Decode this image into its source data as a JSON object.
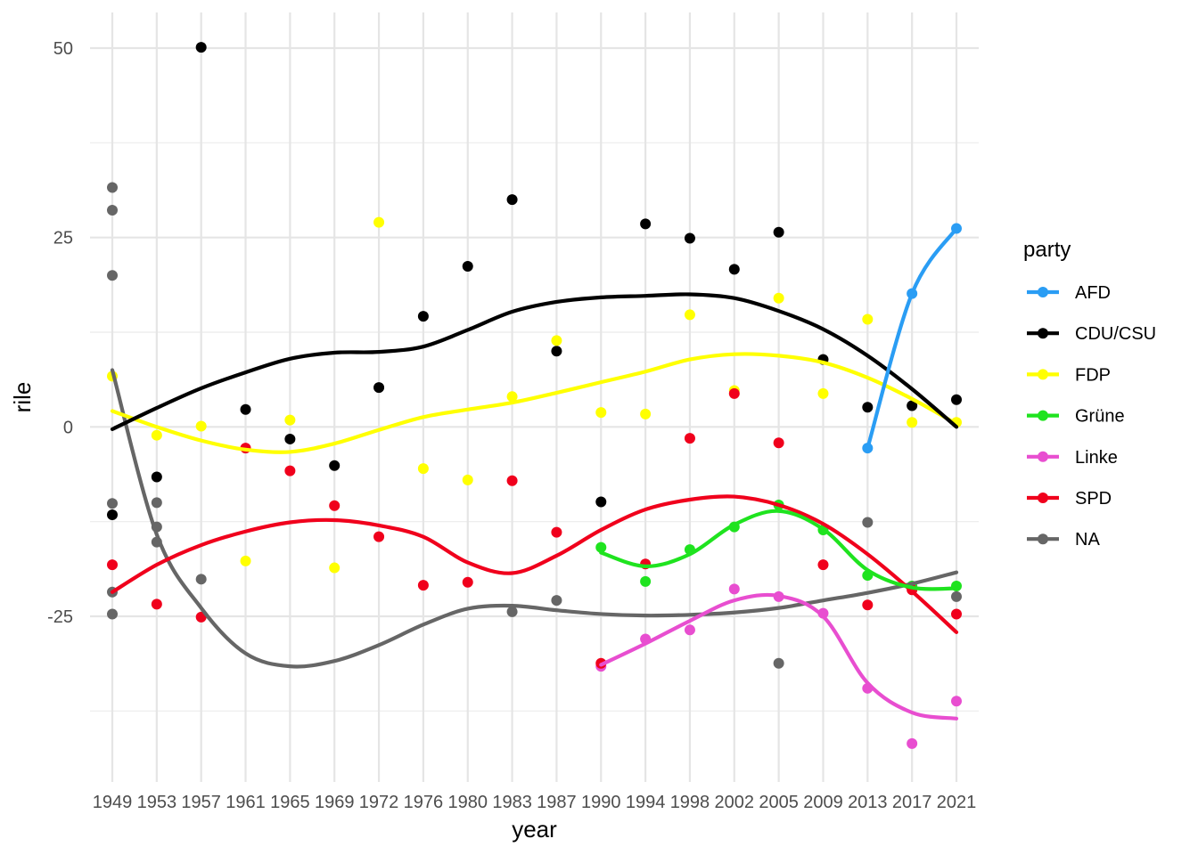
{
  "chart_data": {
    "type": "scatter",
    "xlabel": "year",
    "ylabel": "rile",
    "categories": [
      "1949",
      "1953",
      "1957",
      "1961",
      "1965",
      "1969",
      "1972",
      "1976",
      "1980",
      "1983",
      "1987",
      "1990",
      "1994",
      "1998",
      "2002",
      "2005",
      "2009",
      "2013",
      "2017",
      "2021"
    ],
    "y_ticks": [
      -25,
      0,
      25,
      50
    ],
    "ylim": [
      -46,
      55
    ],
    "grid": true,
    "legend": {
      "title": "party",
      "position": "right"
    },
    "series": [
      {
        "name": "AFD",
        "color": "#2a9df4",
        "points": [
          [
            "2013",
            -2.8
          ],
          [
            "2017",
            17.6
          ],
          [
            "2021",
            26.2
          ]
        ],
        "smooth": [
          [
            "2013",
            -2.8
          ],
          [
            "2017",
            17.6
          ],
          [
            "2021",
            26.2
          ]
        ]
      },
      {
        "name": "CDU/CSU",
        "color": "#000000",
        "points": [
          [
            "1949",
            -11.6
          ],
          [
            "1953",
            -6.6
          ],
          [
            "1957",
            50.1
          ],
          [
            "1961",
            2.3
          ],
          [
            "1965",
            -1.6
          ],
          [
            "1969",
            -5.1
          ],
          [
            "1972",
            5.2
          ],
          [
            "1976",
            14.6
          ],
          [
            "1980",
            21.2
          ],
          [
            "1983",
            30.0
          ],
          [
            "1987",
            10.0
          ],
          [
            "1990",
            -9.9
          ],
          [
            "1994",
            26.8
          ],
          [
            "1998",
            24.9
          ],
          [
            "2002",
            20.8
          ],
          [
            "2005",
            25.7
          ],
          [
            "2009",
            8.9
          ],
          [
            "2013",
            2.6
          ],
          [
            "2017",
            2.8
          ],
          [
            "2021",
            3.6
          ]
        ],
        "smooth": [
          [
            "1949",
            -0.3
          ],
          [
            "1953",
            2.5
          ],
          [
            "1957",
            5.1
          ],
          [
            "1961",
            7.2
          ],
          [
            "1965",
            9.0
          ],
          [
            "1969",
            9.8
          ],
          [
            "1972",
            9.9
          ],
          [
            "1976",
            10.6
          ],
          [
            "1980",
            12.8
          ],
          [
            "1983",
            15.2
          ],
          [
            "1987",
            16.5
          ],
          [
            "1990",
            17.1
          ],
          [
            "1994",
            17.3
          ],
          [
            "1998",
            17.5
          ],
          [
            "2002",
            17.0
          ],
          [
            "2005",
            15.3
          ],
          [
            "2009",
            12.9
          ],
          [
            "2013",
            9.4
          ],
          [
            "2017",
            5.0
          ],
          [
            "2021",
            0.0
          ]
        ]
      },
      {
        "name": "FDP",
        "color": "#ffff00",
        "points": [
          [
            "1949",
            6.7
          ],
          [
            "1953",
            -1.1
          ],
          [
            "1957",
            0.1
          ],
          [
            "1961",
            -17.7
          ],
          [
            "1965",
            0.9
          ],
          [
            "1969",
            -18.6
          ],
          [
            "1972",
            27.0
          ],
          [
            "1976",
            -5.5
          ],
          [
            "1980",
            -7.0
          ],
          [
            "1983",
            4.0
          ],
          [
            "1987",
            11.4
          ],
          [
            "1990",
            1.9
          ],
          [
            "1994",
            1.7
          ],
          [
            "1998",
            14.8
          ],
          [
            "2002",
            4.8
          ],
          [
            "2005",
            17.0
          ],
          [
            "2009",
            4.4
          ],
          [
            "2013",
            14.2
          ],
          [
            "2017",
            0.6
          ],
          [
            "2021",
            0.6
          ]
        ],
        "smooth": [
          [
            "1949",
            2.1
          ],
          [
            "1953",
            0.0
          ],
          [
            "1957",
            -1.8
          ],
          [
            "1961",
            -3.0
          ],
          [
            "1965",
            -3.3
          ],
          [
            "1969",
            -2.2
          ],
          [
            "1972",
            -0.4
          ],
          [
            "1976",
            1.3
          ],
          [
            "1980",
            2.3
          ],
          [
            "1983",
            3.2
          ],
          [
            "1987",
            4.5
          ],
          [
            "1990",
            5.9
          ],
          [
            "1994",
            7.3
          ],
          [
            "1998",
            8.9
          ],
          [
            "2002",
            9.6
          ],
          [
            "2005",
            9.4
          ],
          [
            "2009",
            8.5
          ],
          [
            "2013",
            6.5
          ],
          [
            "2017",
            3.7
          ],
          [
            "2021",
            0.4
          ]
        ]
      },
      {
        "name": "Grüne",
        "color": "#1fe31f",
        "points": [
          [
            "1990",
            -15.9
          ],
          [
            "1994",
            -20.4
          ],
          [
            "1998",
            -16.2
          ],
          [
            "2002",
            -13.2
          ],
          [
            "2005",
            -10.3
          ],
          [
            "2009",
            -13.6
          ],
          [
            "2013",
            -19.6
          ],
          [
            "2017",
            -21.0
          ],
          [
            "2021",
            -21.0
          ]
        ],
        "smooth": [
          [
            "1990",
            -16.6
          ],
          [
            "1994",
            -18.4
          ],
          [
            "1998",
            -16.8
          ],
          [
            "2002",
            -12.9
          ],
          [
            "2005",
            -11.1
          ],
          [
            "2009",
            -13.5
          ],
          [
            "2013",
            -18.9
          ],
          [
            "2017",
            -21.2
          ],
          [
            "2021",
            -21.3
          ]
        ]
      },
      {
        "name": "Linke",
        "color": "#e84ed0",
        "points": [
          [
            "1990",
            -31.6
          ],
          [
            "1994",
            -28.0
          ],
          [
            "1998",
            -26.8
          ],
          [
            "2002",
            -21.4
          ],
          [
            "2005",
            -22.4
          ],
          [
            "2009",
            -24.6
          ],
          [
            "2013",
            -34.5
          ],
          [
            "2017",
            -41.8
          ],
          [
            "2021",
            -36.2
          ]
        ],
        "smooth": [
          [
            "1990",
            -31.4
          ],
          [
            "1994",
            -28.6
          ],
          [
            "1998",
            -25.6
          ],
          [
            "2002",
            -22.9
          ],
          [
            "2005",
            -22.3
          ],
          [
            "2009",
            -25.0
          ],
          [
            "2013",
            -33.8
          ],
          [
            "2017",
            -37.7
          ],
          [
            "2021",
            -38.5
          ]
        ]
      },
      {
        "name": "SPD",
        "color": "#f0001c",
        "points": [
          [
            "1949",
            -18.2
          ],
          [
            "1953",
            -23.4
          ],
          [
            "1957",
            -25.1
          ],
          [
            "1961",
            -2.8
          ],
          [
            "1965",
            -5.8
          ],
          [
            "1969",
            -10.4
          ],
          [
            "1972",
            -14.5
          ],
          [
            "1976",
            -20.9
          ],
          [
            "1980",
            -20.5
          ],
          [
            "1983",
            -7.1
          ],
          [
            "1987",
            -13.9
          ],
          [
            "1990",
            -31.2
          ],
          [
            "1994",
            -18.1
          ],
          [
            "1998",
            -1.5
          ],
          [
            "2002",
            4.4
          ],
          [
            "2005",
            -2.1
          ],
          [
            "2009",
            -18.2
          ],
          [
            "2013",
            -23.5
          ],
          [
            "2017",
            -21.5
          ],
          [
            "2021",
            -24.7
          ]
        ],
        "smooth": [
          [
            "1949",
            -21.8
          ],
          [
            "1953",
            -18.2
          ],
          [
            "1957",
            -15.6
          ],
          [
            "1961",
            -13.8
          ],
          [
            "1965",
            -12.6
          ],
          [
            "1969",
            -12.3
          ],
          [
            "1972",
            -13.0
          ],
          [
            "1976",
            -14.5
          ],
          [
            "1980",
            -17.9
          ],
          [
            "1983",
            -19.3
          ],
          [
            "1987",
            -17.0
          ],
          [
            "1990",
            -13.6
          ],
          [
            "1994",
            -10.9
          ],
          [
            "1998",
            -9.6
          ],
          [
            "2002",
            -9.2
          ],
          [
            "2005",
            -10.3
          ],
          [
            "2009",
            -12.8
          ],
          [
            "2013",
            -16.8
          ],
          [
            "2017",
            -21.7
          ],
          [
            "2021",
            -27.1
          ]
        ]
      },
      {
        "name": "NA",
        "color": "#666666",
        "points": [
          [
            "1949",
            31.6
          ],
          [
            "1949",
            28.6
          ],
          [
            "1949",
            20.0
          ],
          [
            "1949",
            -10.1
          ],
          [
            "1949",
            -21.8
          ],
          [
            "1949",
            -24.7
          ],
          [
            "1953",
            -10.0
          ],
          [
            "1953",
            -13.2
          ],
          [
            "1953",
            -15.2
          ],
          [
            "1957",
            -20.1
          ],
          [
            "1983",
            -24.4
          ],
          [
            "1987",
            -22.9
          ],
          [
            "2005",
            -31.2
          ],
          [
            "2013",
            -12.6
          ],
          [
            "2021",
            -22.4
          ]
        ],
        "smooth": [
          [
            "1949",
            7.5
          ],
          [
            "1953",
            -14.2
          ],
          [
            "1957",
            -23.9
          ],
          [
            "1961",
            -29.9
          ],
          [
            "1965",
            -31.6
          ],
          [
            "1969",
            -30.9
          ],
          [
            "1972",
            -28.8
          ],
          [
            "1976",
            -26.1
          ],
          [
            "1980",
            -24.0
          ],
          [
            "1983",
            -23.6
          ],
          [
            "1987",
            -24.2
          ],
          [
            "1990",
            -24.7
          ],
          [
            "1994",
            -24.9
          ],
          [
            "1998",
            -24.8
          ],
          [
            "2002",
            -24.5
          ],
          [
            "2005",
            -23.9
          ],
          [
            "2009",
            -22.9
          ],
          [
            "2013",
            -21.9
          ],
          [
            "2017",
            -20.7
          ],
          [
            "2021",
            -19.2
          ]
        ]
      }
    ]
  }
}
